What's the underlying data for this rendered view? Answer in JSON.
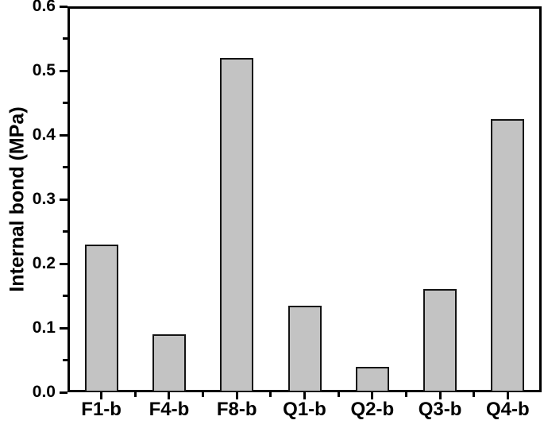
{
  "chart_data": {
    "type": "bar",
    "title": "",
    "xlabel": "",
    "ylabel": "Internal bond (MPa)",
    "categories": [
      "F1-b",
      "F4-b",
      "F8-b",
      "Q1-b",
      "Q2-b",
      "Q3-b",
      "Q4-b"
    ],
    "values": [
      0.23,
      0.09,
      0.52,
      0.135,
      0.04,
      0.16,
      0.425
    ],
    "ylim": [
      0,
      0.6
    ],
    "ytick_labels": [
      "0.0",
      "0.1",
      "0.2",
      "0.3",
      "0.4",
      "0.5",
      "0.6"
    ],
    "ytick_values": [
      0.0,
      0.1,
      0.2,
      0.3,
      0.4,
      0.5,
      0.6
    ],
    "yminor_step": 0.05,
    "grid": false,
    "legend": null,
    "bar_fill_color": "#c3c3c3",
    "bar_border_color": "#141414",
    "axis_color": "#000000",
    "background_color": "#ffffff"
  }
}
